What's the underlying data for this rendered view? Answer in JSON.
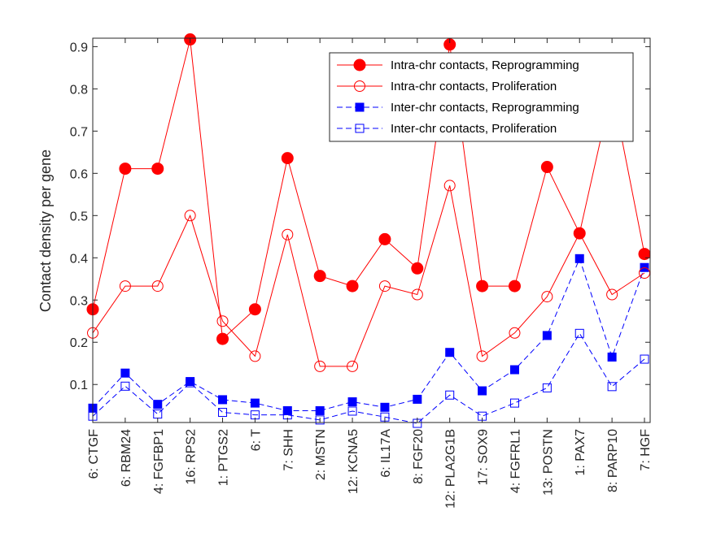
{
  "chart_data": {
    "type": "line",
    "categories": [
      "6: CTGF",
      "6: RBM24",
      "4: FGFBP1",
      "16: RPS2",
      "1: PTGS2",
      "6: T",
      "7: SHH",
      "2: MSTN",
      "12: KCNA5",
      "6: IL17A",
      "8: FGF20",
      "12: PLA2G1B",
      "17: SOX9",
      "4: FGFRL1",
      "13: POSTN",
      "1: PAX7",
      "8: PARP10",
      "7: HGF"
    ],
    "ylabel": "Contact density per gene",
    "xlabel": "",
    "ylim": [
      0.01,
      0.92
    ],
    "yticks": [
      0.1,
      0.2,
      0.3,
      0.4,
      0.5,
      0.6,
      0.7,
      0.8,
      0.9
    ],
    "ytick_labels": [
      "0.1",
      "0.2",
      "0.3",
      "0.4",
      "0.5",
      "0.6",
      "0.7",
      "0.8",
      "0.9"
    ],
    "grid": false,
    "legend_position": "top-right",
    "series": [
      {
        "name": "Intra-chr contacts, Reprogramming",
        "color": "#ff0000",
        "line_style": "solid",
        "marker": "circle-filled",
        "values": [
          0.278,
          0.611,
          0.611,
          0.917,
          0.208,
          0.278,
          0.636,
          0.357,
          0.333,
          0.444,
          0.375,
          0.905,
          0.333,
          0.333,
          0.615,
          0.458,
          0.8,
          0.409
        ]
      },
      {
        "name": "Intra-chr contacts, Proliferation",
        "color": "#ff0000",
        "line_style": "solid",
        "marker": "circle-open",
        "values": [
          0.222,
          0.333,
          0.333,
          0.5,
          0.25,
          0.167,
          0.455,
          0.143,
          0.143,
          0.333,
          0.313,
          0.571,
          0.167,
          0.222,
          0.308,
          0.458,
          0.313,
          0.364
        ]
      },
      {
        "name": "Inter-chr contacts, Reprogramming",
        "color": "#0000ff",
        "line_style": "dashed",
        "marker": "square-filled",
        "values": [
          0.044,
          0.127,
          0.053,
          0.107,
          0.064,
          0.056,
          0.038,
          0.038,
          0.059,
          0.046,
          0.065,
          0.176,
          0.085,
          0.135,
          0.216,
          0.398,
          0.165,
          0.377
        ]
      },
      {
        "name": "Inter-chr contacts, Proliferation",
        "color": "#0000ff",
        "line_style": "dashed",
        "marker": "square-open",
        "values": [
          0.025,
          0.096,
          0.03,
          0.104,
          0.034,
          0.028,
          0.028,
          0.016,
          0.037,
          0.023,
          0.008,
          0.075,
          0.025,
          0.056,
          0.092,
          0.221,
          0.095,
          0.16
        ]
      }
    ]
  }
}
